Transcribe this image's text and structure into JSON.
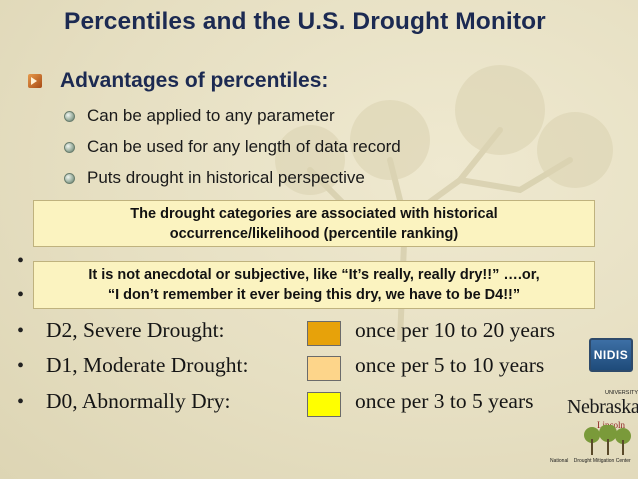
{
  "slide": {
    "title": "Percentiles and the U.S. Drought Monitor",
    "advantages": {
      "heading": "Advantages of percentiles:",
      "items": [
        "Can be applied to any parameter",
        "Can be used for any length of data record",
        "Puts drought in historical perspective"
      ]
    },
    "callout_1": {
      "line_1": "The drought categories are associated with historical",
      "line_2": "occurrence/likelihood (percentile ranking)"
    },
    "callout_2": {
      "line_1": "It is not anecdotal or subjective, like “It’s really, really dry!!” ….or,",
      "line_2": "“I don’t remember it ever being this dry, we have to be D4!!”"
    },
    "categories": [
      {
        "label": "D2, Severe Drought:",
        "frequency": "once per 10 to 20 years",
        "color": "#e7a20a"
      },
      {
        "label": "D1, Moderate Drought:",
        "frequency": "once per 5 to 10 years",
        "color": "#fdd58a"
      },
      {
        "label": "D0, Abnormally Dry:",
        "frequency": "once per 3 to 5 years",
        "color": "#ffff00"
      }
    ],
    "bullet_char": "•"
  },
  "logos": {
    "nidis": "NIDIS",
    "unl_small": "UNIVERSITY OF",
    "unl_name": "Nebraska",
    "unl_city": "Lincoln",
    "ndmc_left": "National",
    "ndmc_right": "Drought Mitigation Center"
  },
  "colors": {
    "title": "#1c2a52",
    "callout_bg": "#fbf3c0",
    "background": "#e8e2c6"
  }
}
